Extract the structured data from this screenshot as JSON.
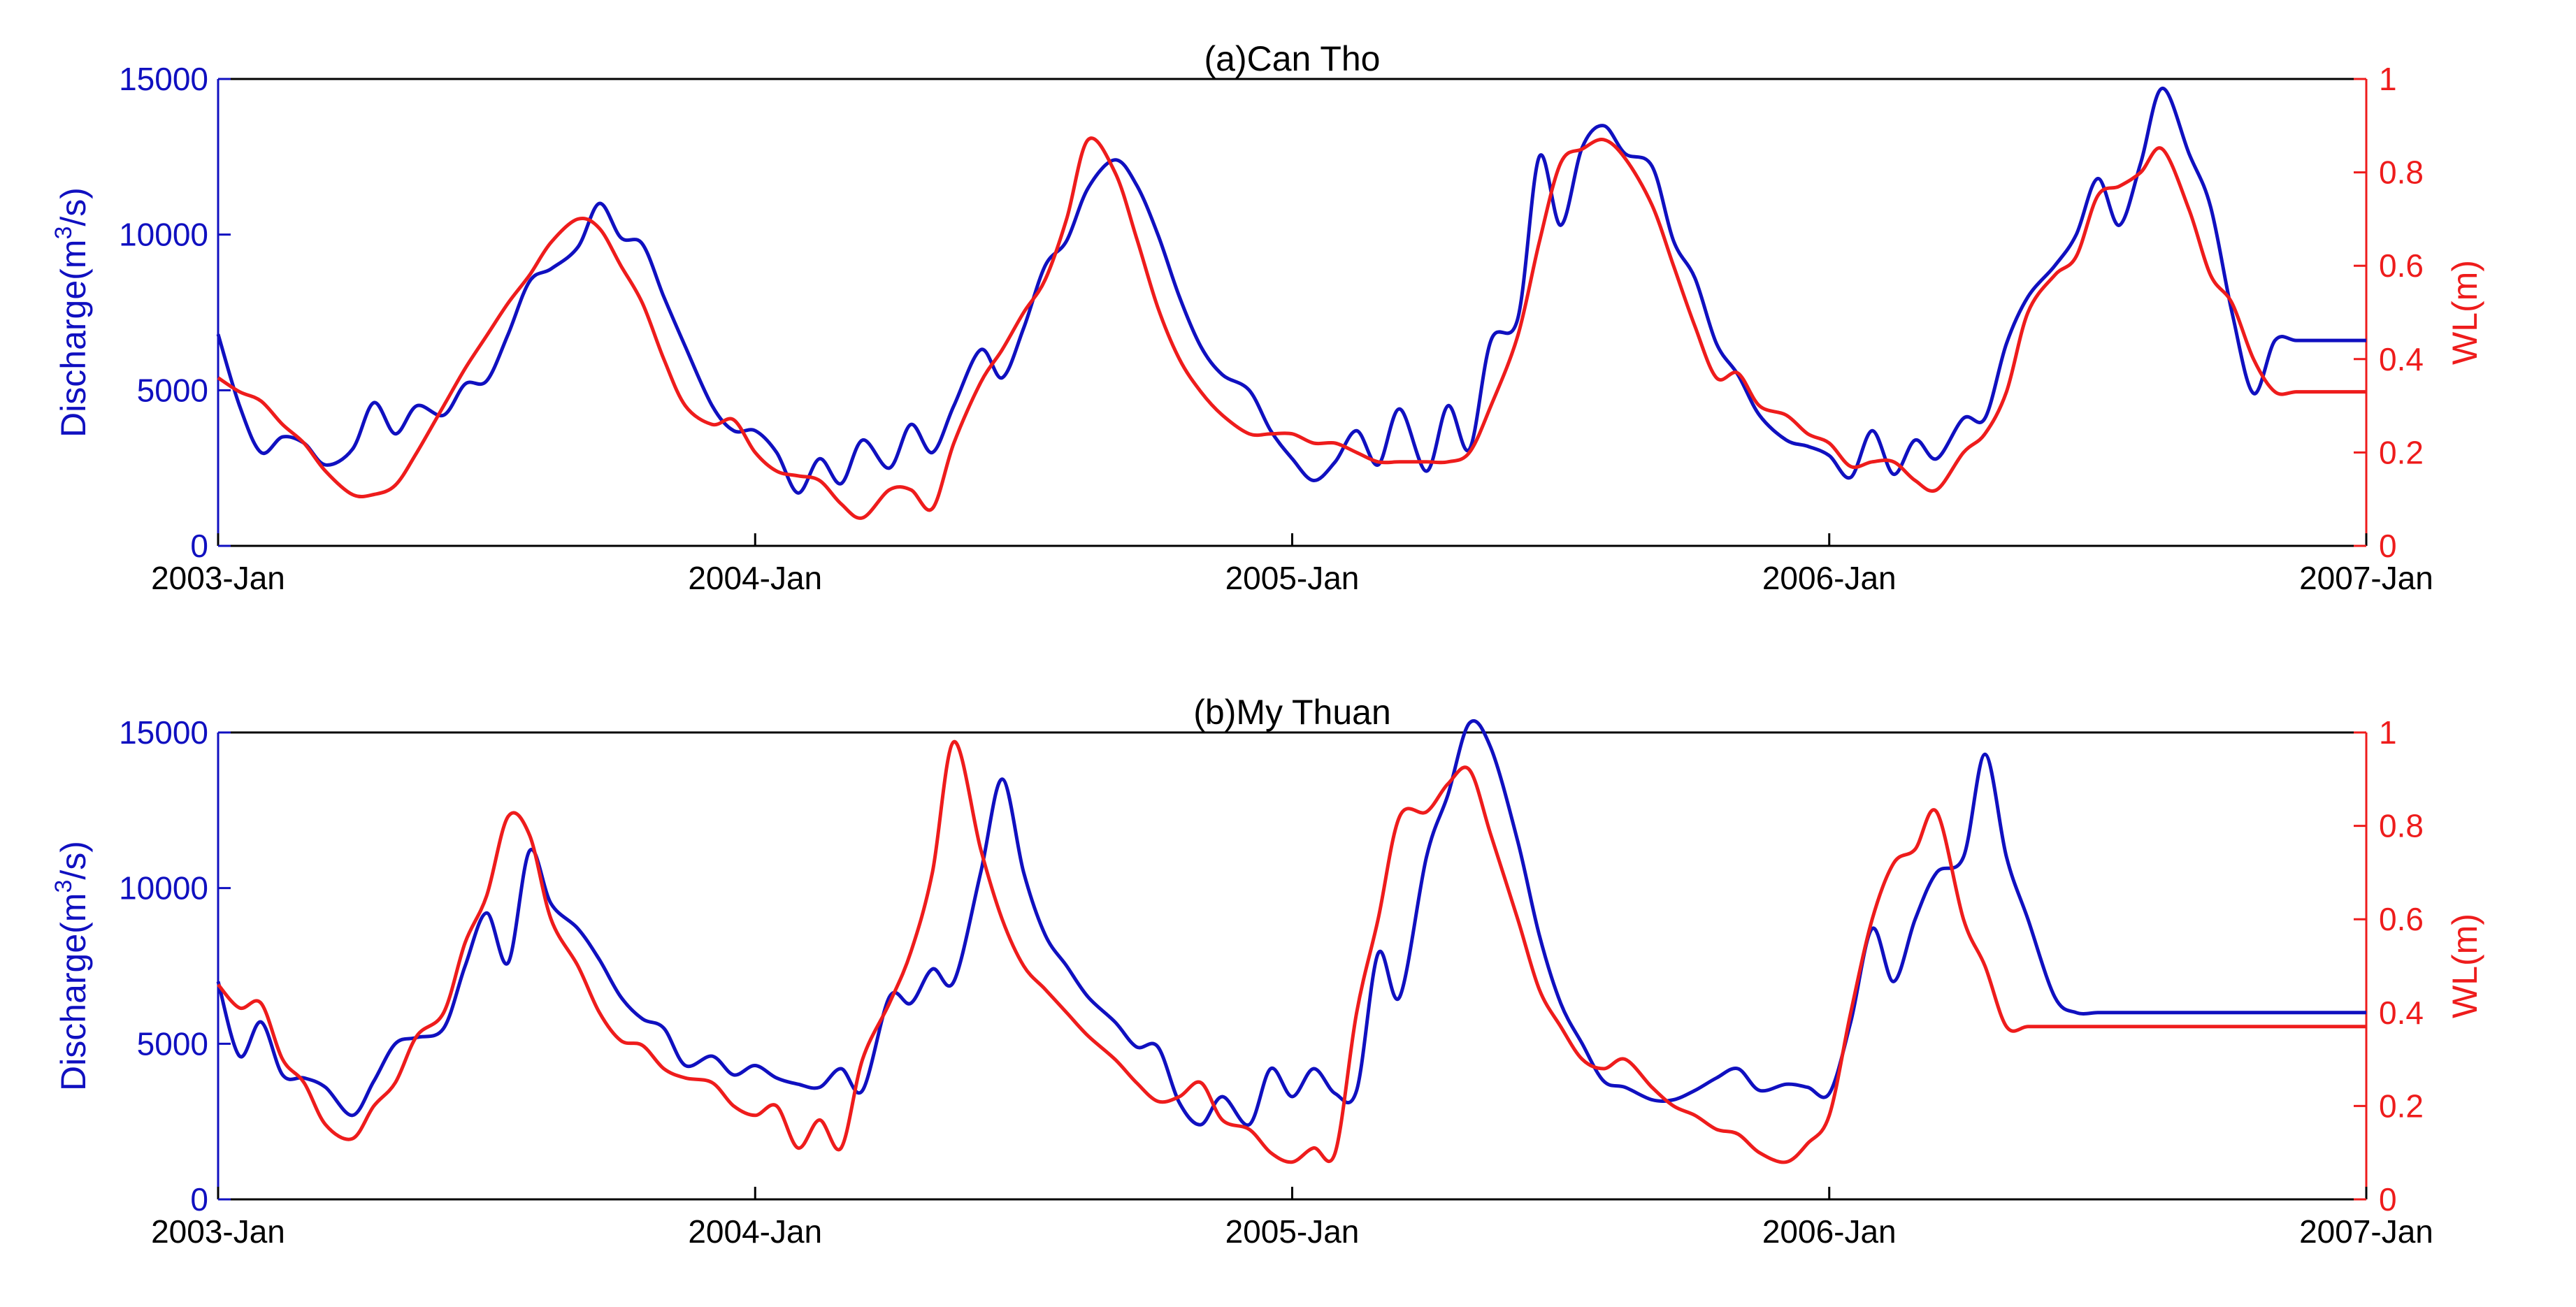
{
  "colors": {
    "discharge": "#1010c0",
    "wl": "#ee1c1c",
    "axis_text": "#000000"
  },
  "chart_data": [
    {
      "type": "line",
      "title": "(a)Can Tho",
      "xlabel": "",
      "x_ticks": [
        "2003-Jan",
        "2004-Jan",
        "2005-Jan",
        "2006-Jan",
        "2007-Jan"
      ],
      "xlim": [
        2003.0,
        2007.0
      ],
      "ylabel_left_prefix": "Discharge(m",
      "ylabel_left_sup": "3",
      "ylabel_left_suffix": "/s)",
      "ylabel_right": "WL(m)",
      "ylim_left": [
        0,
        15000
      ],
      "yticks_left": [
        "0",
        "5000",
        "10000",
        "15000"
      ],
      "ylim_right": [
        0,
        1
      ],
      "yticks_right": [
        "0",
        "0.2",
        "0.4",
        "0.6",
        "0.8",
        "1"
      ],
      "series": [
        {
          "name": "Discharge",
          "axis": "left",
          "x": [
            2003.0,
            2003.04,
            2003.08,
            2003.12,
            2003.16,
            2003.2,
            2003.25,
            2003.29,
            2003.33,
            2003.37,
            2003.42,
            2003.46,
            2003.5,
            2003.54,
            2003.58,
            2003.62,
            2003.67,
            2003.71,
            2003.75,
            2003.79,
            2003.83,
            2003.87,
            2003.92,
            2003.96,
            2004.0,
            2004.04,
            2004.08,
            2004.12,
            2004.16,
            2004.2,
            2004.25,
            2004.29,
            2004.33,
            2004.37,
            2004.42,
            2004.46,
            2004.5,
            2004.54,
            2004.58,
            2004.62,
            2004.67,
            2004.71,
            2004.75,
            2004.79,
            2004.83,
            2004.87,
            2004.92,
            2004.96,
            2005.0,
            2005.04,
            2005.08,
            2005.12,
            2005.16,
            2005.2,
            2005.25,
            2005.29,
            2005.33,
            2005.37,
            2005.42,
            2005.46,
            2005.5,
            2005.54,
            2005.58,
            2005.62,
            2005.67,
            2005.71,
            2005.75,
            2005.79,
            2005.83,
            2005.87,
            2005.92,
            2005.96,
            2006.0,
            2006.04,
            2006.08,
            2006.12,
            2006.16,
            2006.2,
            2006.25,
            2006.29,
            2006.33,
            2006.37,
            2006.42,
            2006.46,
            2006.5,
            2006.54,
            2006.58,
            2006.62,
            2006.67,
            2006.71,
            2006.75,
            2006.79,
            2006.83,
            2006.87,
            2006.92,
            2006.96,
            2007.0
          ],
          "y": [
            6800,
            4500,
            3000,
            3500,
            3300,
            2600,
            3100,
            4600,
            3600,
            4500,
            4200,
            5200,
            5300,
            6800,
            8500,
            8900,
            9600,
            11000,
            9900,
            9700,
            8000,
            6400,
            4500,
            3700,
            3700,
            3000,
            1700,
            2800,
            2000,
            3400,
            2500,
            3900,
            3000,
            4500,
            6300,
            5400,
            7000,
            9000,
            9800,
            11500,
            12400,
            11600,
            10000,
            8000,
            6400,
            5500,
            5000,
            3700,
            2800,
            2100,
            2700,
            3700,
            2600,
            4400,
            2400,
            4500,
            3100,
            6600,
            7300,
            12500,
            10300,
            12800,
            13500,
            12600,
            12200,
            9800,
            8600,
            6500,
            5500,
            4200,
            3400,
            3200,
            2900,
            2200,
            3700,
            2300,
            3400,
            2800,
            4100,
            4100,
            6500,
            8000,
            9000,
            10000,
            11800,
            10300,
            12300,
            14700,
            12600,
            10900,
            7500,
            4900,
            6600,
            6600,
            6600,
            6600,
            6600
          ]
        },
        {
          "name": "WL",
          "axis": "right",
          "x": [
            2003.0,
            2003.04,
            2003.08,
            2003.12,
            2003.16,
            2003.2,
            2003.25,
            2003.29,
            2003.33,
            2003.37,
            2003.42,
            2003.46,
            2003.5,
            2003.54,
            2003.58,
            2003.62,
            2003.67,
            2003.71,
            2003.75,
            2003.79,
            2003.83,
            2003.87,
            2003.92,
            2003.96,
            2004.0,
            2004.04,
            2004.08,
            2004.12,
            2004.16,
            2004.2,
            2004.25,
            2004.29,
            2004.33,
            2004.37,
            2004.42,
            2004.46,
            2004.5,
            2004.54,
            2004.58,
            2004.62,
            2004.67,
            2004.71,
            2004.75,
            2004.79,
            2004.83,
            2004.87,
            2004.92,
            2004.96,
            2005.0,
            2005.04,
            2005.08,
            2005.12,
            2005.16,
            2005.2,
            2005.25,
            2005.29,
            2005.33,
            2005.37,
            2005.42,
            2005.46,
            2005.5,
            2005.54,
            2005.58,
            2005.62,
            2005.67,
            2005.71,
            2005.75,
            2005.79,
            2005.83,
            2005.87,
            2005.92,
            2005.96,
            2006.0,
            2006.04,
            2006.08,
            2006.12,
            2006.16,
            2006.2,
            2006.25,
            2006.29,
            2006.33,
            2006.37,
            2006.42,
            2006.46,
            2006.5,
            2006.54,
            2006.58,
            2006.62,
            2006.67,
            2006.71,
            2006.75,
            2006.79,
            2006.83,
            2006.87,
            2006.92,
            2006.96,
            2007.0
          ],
          "y": [
            0.36,
            0.33,
            0.31,
            0.26,
            0.22,
            0.16,
            0.11,
            0.11,
            0.13,
            0.2,
            0.3,
            0.38,
            0.45,
            0.52,
            0.58,
            0.65,
            0.7,
            0.68,
            0.6,
            0.52,
            0.4,
            0.3,
            0.26,
            0.27,
            0.2,
            0.16,
            0.15,
            0.14,
            0.09,
            0.06,
            0.12,
            0.12,
            0.08,
            0.22,
            0.35,
            0.42,
            0.5,
            0.57,
            0.7,
            0.87,
            0.8,
            0.66,
            0.51,
            0.4,
            0.33,
            0.28,
            0.24,
            0.24,
            0.24,
            0.22,
            0.22,
            0.2,
            0.18,
            0.18,
            0.18,
            0.18,
            0.2,
            0.3,
            0.45,
            0.65,
            0.82,
            0.85,
            0.87,
            0.83,
            0.73,
            0.6,
            0.47,
            0.36,
            0.37,
            0.3,
            0.28,
            0.24,
            0.22,
            0.17,
            0.18,
            0.18,
            0.14,
            0.12,
            0.2,
            0.24,
            0.33,
            0.5,
            0.58,
            0.62,
            0.75,
            0.77,
            0.8,
            0.85,
            0.72,
            0.58,
            0.52,
            0.4,
            0.33,
            0.33,
            0.33,
            0.33,
            0.33
          ]
        }
      ]
    },
    {
      "type": "line",
      "title": "(b)My Thuan",
      "xlabel": "",
      "x_ticks": [
        "2003-Jan",
        "2004-Jan",
        "2005-Jan",
        "2006-Jan",
        "2007-Jan"
      ],
      "xlim": [
        2003.0,
        2007.0
      ],
      "ylabel_left_prefix": "Discharge(m",
      "ylabel_left_sup": "3",
      "ylabel_left_suffix": "/s)",
      "ylabel_right": "WL(m)",
      "ylim_left": [
        0,
        15000
      ],
      "yticks_left": [
        "0",
        "5000",
        "10000",
        "15000"
      ],
      "ylim_right": [
        0,
        1
      ],
      "yticks_right": [
        "0",
        "0.2",
        "0.4",
        "0.6",
        "0.8",
        "1"
      ],
      "series": [
        {
          "name": "Discharge",
          "axis": "left",
          "x": [
            2003.0,
            2003.04,
            2003.08,
            2003.12,
            2003.16,
            2003.2,
            2003.25,
            2003.29,
            2003.33,
            2003.37,
            2003.42,
            2003.46,
            2003.5,
            2003.54,
            2003.58,
            2003.62,
            2003.67,
            2003.71,
            2003.75,
            2003.79,
            2003.83,
            2003.87,
            2003.92,
            2003.96,
            2004.0,
            2004.04,
            2004.08,
            2004.12,
            2004.16,
            2004.2,
            2004.25,
            2004.29,
            2004.33,
            2004.37,
            2004.42,
            2004.46,
            2004.5,
            2004.54,
            2004.58,
            2004.62,
            2004.67,
            2004.71,
            2004.75,
            2004.79,
            2004.83,
            2004.87,
            2004.92,
            2004.96,
            2005.0,
            2005.04,
            2005.08,
            2005.12,
            2005.16,
            2005.2,
            2005.25,
            2005.29,
            2005.33,
            2005.37,
            2005.42,
            2005.46,
            2005.5,
            2005.54,
            2005.58,
            2005.62,
            2005.67,
            2005.71,
            2005.75,
            2005.79,
            2005.83,
            2005.87,
            2005.92,
            2005.96,
            2006.0,
            2006.04,
            2006.08,
            2006.12,
            2006.16,
            2006.2,
            2006.25,
            2006.29,
            2006.33,
            2006.37,
            2006.42,
            2006.46,
            2006.5,
            2006.54,
            2006.58,
            2006.62,
            2006.67,
            2006.71,
            2006.75,
            2006.79,
            2006.83,
            2006.87,
            2006.92,
            2006.96,
            2007.0
          ],
          "y": [
            7000,
            4600,
            5700,
            4000,
            3900,
            3600,
            2700,
            3800,
            5000,
            5200,
            5500,
            7500,
            9200,
            7600,
            11200,
            9500,
            8700,
            7700,
            6500,
            5800,
            5500,
            4300,
            4600,
            4000,
            4300,
            3900,
            3700,
            3600,
            4200,
            3500,
            6500,
            6300,
            7400,
            7000,
            10500,
            13500,
            10500,
            8500,
            7500,
            6500,
            5700,
            4900,
            4900,
            3100,
            2400,
            3300,
            2400,
            4200,
            3300,
            4200,
            3400,
            3500,
            7900,
            6500,
            11000,
            13000,
            15300,
            14500,
            11500,
            8500,
            6300,
            5000,
            3800,
            3600,
            3200,
            3200,
            3500,
            3900,
            4200,
            3500,
            3700,
            3600,
            3400,
            5700,
            8700,
            7000,
            9000,
            10500,
            11000,
            14300,
            11000,
            9000,
            6500,
            6000,
            6000,
            6000,
            6000,
            6000,
            6000,
            6000,
            6000,
            6000,
            6000,
            6000,
            6000,
            6000,
            6000
          ]
        },
        {
          "name": "WL",
          "axis": "right",
          "x": [
            2003.0,
            2003.04,
            2003.08,
            2003.12,
            2003.16,
            2003.2,
            2003.25,
            2003.29,
            2003.33,
            2003.37,
            2003.42,
            2003.46,
            2003.5,
            2003.54,
            2003.58,
            2003.62,
            2003.67,
            2003.71,
            2003.75,
            2003.79,
            2003.83,
            2003.87,
            2003.92,
            2003.96,
            2004.0,
            2004.04,
            2004.08,
            2004.12,
            2004.16,
            2004.2,
            2004.25,
            2004.29,
            2004.33,
            2004.37,
            2004.42,
            2004.46,
            2004.5,
            2004.54,
            2004.58,
            2004.62,
            2004.67,
            2004.71,
            2004.75,
            2004.79,
            2004.83,
            2004.87,
            2004.92,
            2004.96,
            2005.0,
            2005.04,
            2005.08,
            2005.12,
            2005.16,
            2005.2,
            2005.25,
            2005.29,
            2005.33,
            2005.37,
            2005.42,
            2005.46,
            2005.5,
            2005.54,
            2005.58,
            2005.62,
            2005.67,
            2005.71,
            2005.75,
            2005.79,
            2005.83,
            2005.87,
            2005.92,
            2005.96,
            2006.0,
            2006.04,
            2006.08,
            2006.12,
            2006.16,
            2006.2,
            2006.25,
            2006.29,
            2006.33,
            2006.37,
            2006.42,
            2006.46,
            2006.5,
            2006.54,
            2006.58,
            2006.62,
            2006.67,
            2006.71,
            2006.75,
            2006.79,
            2006.83,
            2006.87,
            2006.92,
            2006.96,
            2007.0
          ],
          "y": [
            0.46,
            0.41,
            0.42,
            0.3,
            0.25,
            0.16,
            0.13,
            0.2,
            0.25,
            0.35,
            0.4,
            0.55,
            0.65,
            0.82,
            0.78,
            0.6,
            0.5,
            0.4,
            0.34,
            0.33,
            0.28,
            0.26,
            0.25,
            0.2,
            0.18,
            0.2,
            0.11,
            0.17,
            0.11,
            0.3,
            0.42,
            0.53,
            0.7,
            0.98,
            0.75,
            0.6,
            0.5,
            0.45,
            0.4,
            0.35,
            0.3,
            0.25,
            0.21,
            0.22,
            0.25,
            0.17,
            0.15,
            0.1,
            0.08,
            0.11,
            0.1,
            0.4,
            0.6,
            0.82,
            0.83,
            0.89,
            0.92,
            0.78,
            0.6,
            0.45,
            0.37,
            0.3,
            0.28,
            0.3,
            0.24,
            0.2,
            0.18,
            0.15,
            0.14,
            0.1,
            0.08,
            0.12,
            0.18,
            0.4,
            0.6,
            0.72,
            0.75,
            0.83,
            0.6,
            0.5,
            0.37,
            0.37,
            0.37,
            0.37,
            0.37,
            0.37,
            0.37,
            0.37,
            0.37,
            0.37,
            0.37,
            0.37,
            0.37,
            0.37,
            0.37,
            0.37,
            0.37
          ]
        }
      ]
    }
  ]
}
